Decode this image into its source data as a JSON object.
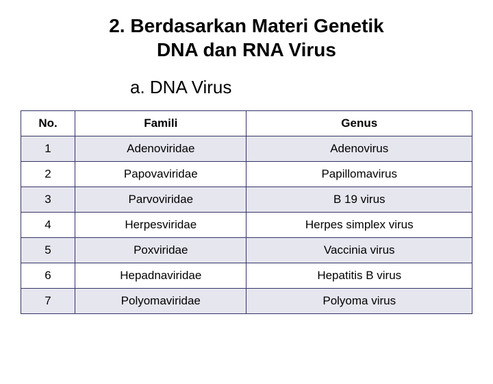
{
  "title_line1": "2. Berdasarkan Materi Genetik",
  "title_line2": "DNA dan RNA Virus",
  "subtitle": "a. DNA Virus",
  "table": {
    "columns": [
      "No.",
      "Famili",
      "Genus"
    ],
    "rows": [
      [
        "1",
        "Adenoviridae",
        "Adenovirus"
      ],
      [
        "2",
        "Papovaviridae",
        "Papillomavirus"
      ],
      [
        "3",
        "Parvoviridae",
        "B 19 virus"
      ],
      [
        "4",
        "Herpesviridae",
        "Herpes simplex virus"
      ],
      [
        "5",
        "Poxviridae",
        "Vaccinia virus"
      ],
      [
        "6",
        "Hepadnaviridae",
        "Hepatitis B virus"
      ],
      [
        "7",
        "Polyomaviridae",
        "Polyoma virus"
      ]
    ],
    "alt_row_bg": "#e6e6ef",
    "border_color": "#333366"
  }
}
